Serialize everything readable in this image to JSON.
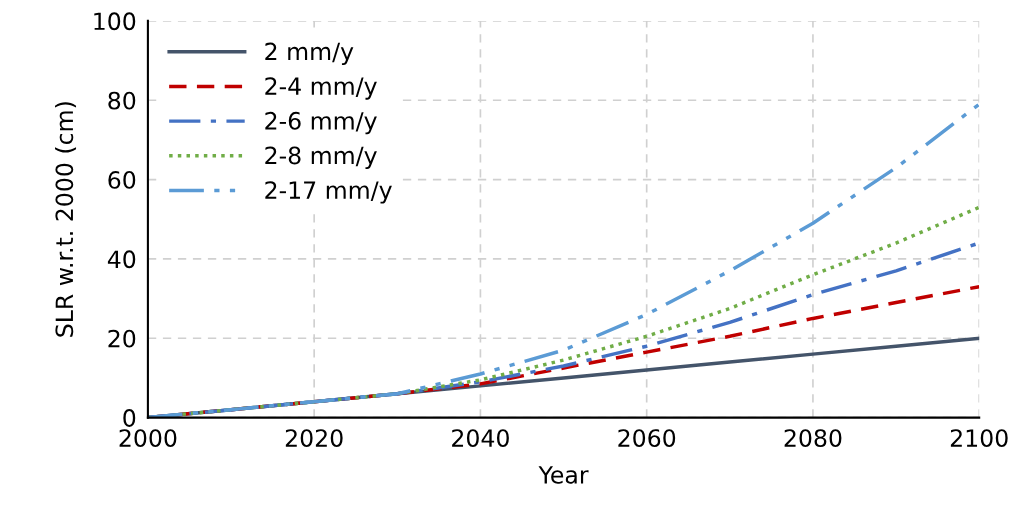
{
  "chart_data": {
    "type": "line",
    "xlabel": "Year",
    "ylabel": "SLR w.r.t. 2000 (cm)",
    "x": [
      2000,
      2010,
      2020,
      2030,
      2040,
      2050,
      2060,
      2070,
      2080,
      2090,
      2100
    ],
    "series": [
      {
        "name": "2 mm/y",
        "color": "#44546a",
        "line_style": "solid",
        "values": [
          0,
          2,
          4,
          6,
          8,
          10,
          12,
          14,
          16,
          18,
          20
        ]
      },
      {
        "name": "2-4 mm/y",
        "color": "#c00000",
        "line_style": "dashed",
        "values": [
          0,
          2,
          4,
          6,
          8.5,
          12.5,
          16.5,
          20.5,
          25,
          29,
          33
        ]
      },
      {
        "name": "2-6 mm/y",
        "color": "#4472c4",
        "line_style": "dashdot",
        "values": [
          0,
          2,
          4,
          6,
          9,
          13,
          18,
          24,
          31,
          37,
          44
        ]
      },
      {
        "name": "2-8 mm/y",
        "color": "#70ad47",
        "line_style": "dotted",
        "values": [
          0,
          2,
          4,
          6,
          9.5,
          14.5,
          20.5,
          27.5,
          36,
          44,
          53
        ]
      },
      {
        "name": "2-17 mm/y",
        "color": "#5b9bd5",
        "line_style": "dashdotdot",
        "values": [
          0,
          2,
          4,
          6,
          11,
          17,
          26,
          37,
          49,
          63,
          79
        ]
      }
    ],
    "xlim": [
      2000,
      2100
    ],
    "xticks": [
      2000,
      2020,
      2040,
      2060,
      2080,
      2100
    ],
    "ylim": [
      0,
      100
    ],
    "yticks": [
      0,
      20,
      40,
      60,
      80,
      100
    ],
    "grid": true,
    "legend": "top left",
    "marker": "none"
  }
}
